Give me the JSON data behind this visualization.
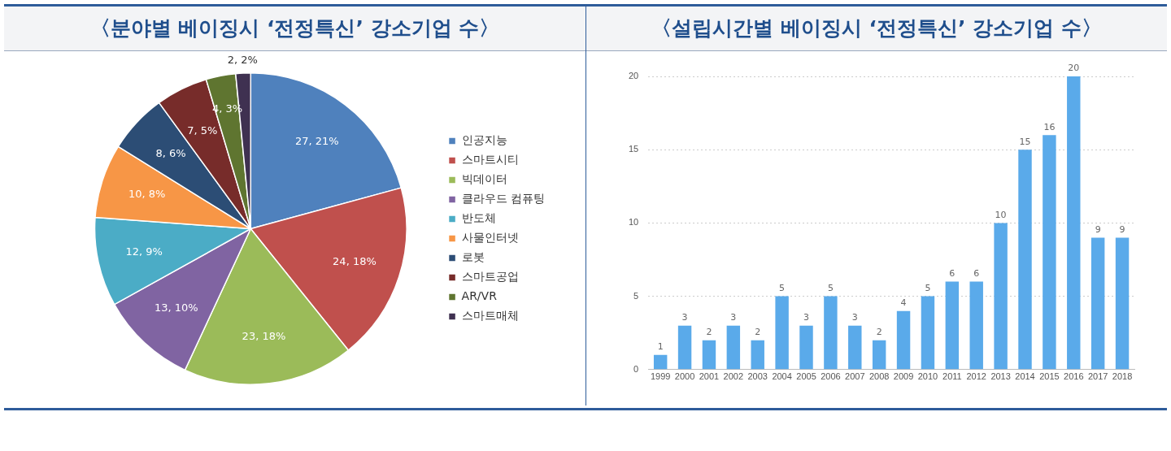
{
  "chart_data": [
    {
      "type": "pie",
      "title": "〈분야별 베이징시 ‘전정특신’ 강소기업 수〉",
      "categories": [
        "인공지능",
        "스마트시티",
        "빅데이터",
        "클라우드 컴퓨팅",
        "반도체",
        "사물인터넷",
        "로봇",
        "스마트공업",
        "AR/VR",
        "스마트매체"
      ],
      "values": [
        27,
        24,
        23,
        13,
        12,
        10,
        8,
        7,
        4,
        2
      ],
      "colors": [
        "#4f81bd",
        "#c0504d",
        "#9bbb59",
        "#8064a2",
        "#4bacc6",
        "#f79646",
        "#2c4d75",
        "#772c2a",
        "#5f7530",
        "#3f3151"
      ],
      "value_labels": [
        "27, 21%",
        "24, 18%",
        "23, 18%",
        "13, 10%",
        "12, 9%",
        "10, 8%",
        "8, 6%",
        "7, 5%",
        "4, 3%",
        "2, 2%"
      ],
      "legend": "right"
    },
    {
      "type": "bar",
      "title": "〈설립시간별 베이징시 ‘전정특신’ 강소기업 수〉",
      "categories": [
        "1999",
        "2000",
        "2001",
        "2002",
        "2003",
        "2004",
        "2005",
        "2006",
        "2007",
        "2008",
        "2009",
        "2010",
        "2011",
        "2012",
        "2013",
        "2014",
        "2015",
        "2016",
        "2017",
        "2018"
      ],
      "values": [
        1,
        3,
        2,
        3,
        2,
        5,
        3,
        5,
        3,
        2,
        4,
        5,
        6,
        6,
        10,
        15,
        16,
        20,
        9,
        9
      ],
      "color": "#5aaaea",
      "ylim": [
        0,
        20
      ],
      "yticks": [
        0,
        5,
        10,
        15,
        20
      ],
      "grid": "y",
      "data_labels": true
    }
  ]
}
